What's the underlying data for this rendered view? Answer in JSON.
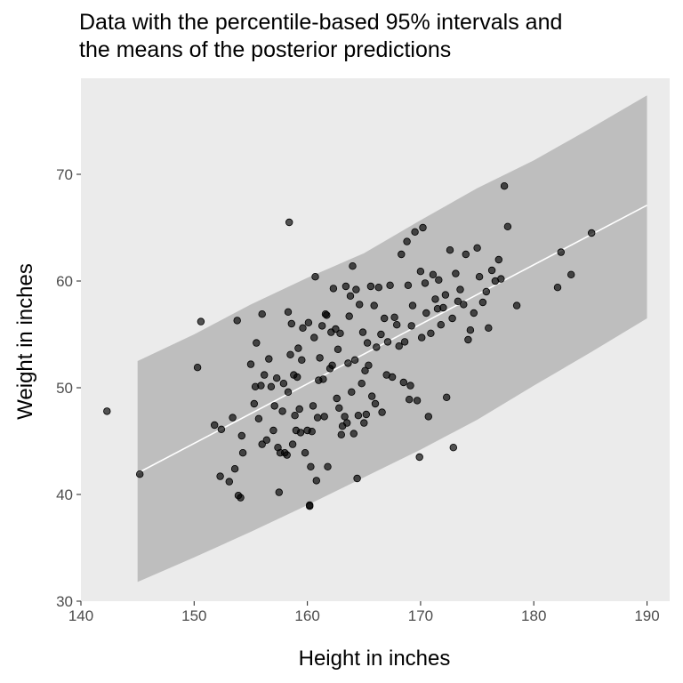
{
  "chart_data": {
    "type": "scatter",
    "title_lines": [
      "Data with the percentile-based 95% intervals and",
      "the means of the posterior predictions"
    ],
    "xlabel": "Height in inches",
    "ylabel": "Weight in inches",
    "xlim": [
      140,
      192
    ],
    "ylim": [
      30,
      79
    ],
    "x_ticks": [
      140,
      150,
      160,
      170,
      180,
      190
    ],
    "y_ticks": [
      30,
      40,
      50,
      60,
      70
    ],
    "grid": false,
    "colors": {
      "panel": "#ebebeb",
      "ribbon": "#bebebe",
      "mean_line": "#ffffff",
      "points": "#000000",
      "tick_text": "#4d4d4d"
    },
    "interval": {
      "x": [
        145,
        150,
        155,
        160,
        165,
        170,
        175,
        180,
        185,
        190
      ],
      "lower": [
        31.8,
        34.1,
        36.5,
        39.0,
        41.6,
        44.2,
        47.0,
        50.2,
        53.3,
        56.5
      ],
      "upper": [
        52.5,
        55.0,
        57.8,
        60.3,
        62.6,
        65.7,
        68.7,
        71.3,
        74.3,
        77.4
      ]
    },
    "mean_line": {
      "x": [
        145,
        190
      ],
      "y": [
        42.0,
        67.1
      ]
    },
    "points": [
      [
        142.3,
        47.8
      ],
      [
        145.2,
        41.9
      ],
      [
        150.3,
        51.9
      ],
      [
        150.6,
        56.2
      ],
      [
        151.8,
        46.5
      ],
      [
        152.3,
        41.7
      ],
      [
        152.4,
        46.1
      ],
      [
        153.1,
        41.2
      ],
      [
        153.4,
        47.2
      ],
      [
        153.6,
        42.4
      ],
      [
        153.8,
        56.3
      ],
      [
        153.9,
        39.9
      ],
      [
        154.1,
        39.7
      ],
      [
        154.2,
        45.5
      ],
      [
        154.3,
        43.9
      ],
      [
        155.0,
        52.2
      ],
      [
        155.3,
        48.5
      ],
      [
        155.4,
        50.1
      ],
      [
        155.5,
        54.2
      ],
      [
        155.7,
        47.1
      ],
      [
        155.9,
        50.2
      ],
      [
        156.0,
        56.9
      ],
      [
        156.0,
        44.7
      ],
      [
        156.2,
        51.2
      ],
      [
        156.4,
        45.1
      ],
      [
        156.6,
        52.7
      ],
      [
        156.8,
        50.1
      ],
      [
        157.0,
        46.0
      ],
      [
        157.1,
        48.3
      ],
      [
        157.3,
        50.9
      ],
      [
        157.4,
        44.4
      ],
      [
        157.5,
        40.2
      ],
      [
        157.6,
        43.9
      ],
      [
        157.8,
        47.8
      ],
      [
        157.9,
        50.4
      ],
      [
        158.0,
        43.9
      ],
      [
        158.2,
        43.7
      ],
      [
        158.3,
        49.6
      ],
      [
        158.3,
        57.1
      ],
      [
        158.4,
        65.5
      ],
      [
        158.5,
        53.1
      ],
      [
        158.6,
        56.0
      ],
      [
        158.7,
        44.7
      ],
      [
        158.8,
        51.2
      ],
      [
        158.9,
        47.4
      ],
      [
        159.0,
        46.0
      ],
      [
        159.1,
        51.0
      ],
      [
        159.2,
        53.7
      ],
      [
        159.3,
        48.0
      ],
      [
        159.4,
        45.8
      ],
      [
        159.5,
        52.6
      ],
      [
        159.6,
        55.6
      ],
      [
        159.8,
        43.9
      ],
      [
        160.0,
        46.0
      ],
      [
        160.1,
        56.1
      ],
      [
        160.2,
        39.0
      ],
      [
        160.2,
        38.9
      ],
      [
        160.3,
        42.6
      ],
      [
        160.4,
        45.9
      ],
      [
        160.5,
        48.3
      ],
      [
        160.6,
        54.7
      ],
      [
        160.7,
        60.4
      ],
      [
        160.8,
        41.3
      ],
      [
        160.9,
        47.2
      ],
      [
        161.0,
        50.7
      ],
      [
        161.1,
        52.8
      ],
      [
        161.3,
        55.8
      ],
      [
        161.4,
        50.8
      ],
      [
        161.5,
        47.3
      ],
      [
        161.6,
        56.9
      ],
      [
        161.7,
        56.8
      ],
      [
        161.8,
        42.6
      ],
      [
        162.0,
        51.8
      ],
      [
        162.1,
        55.2
      ],
      [
        162.2,
        52.1
      ],
      [
        162.3,
        59.3
      ],
      [
        162.5,
        55.5
      ],
      [
        162.6,
        49.0
      ],
      [
        162.7,
        53.6
      ],
      [
        162.8,
        48.1
      ],
      [
        162.9,
        55.1
      ],
      [
        163.0,
        45.6
      ],
      [
        163.1,
        46.4
      ],
      [
        163.3,
        47.3
      ],
      [
        163.4,
        59.5
      ],
      [
        163.5,
        46.7
      ],
      [
        163.6,
        52.3
      ],
      [
        163.7,
        56.7
      ],
      [
        163.8,
        58.6
      ],
      [
        163.9,
        49.6
      ],
      [
        164.0,
        61.4
      ],
      [
        164.1,
        45.7
      ],
      [
        164.2,
        52.6
      ],
      [
        164.3,
        59.2
      ],
      [
        164.4,
        41.5
      ],
      [
        164.5,
        47.4
      ],
      [
        164.6,
        57.8
      ],
      [
        164.8,
        50.4
      ],
      [
        164.9,
        55.2
      ],
      [
        165.0,
        46.7
      ],
      [
        165.1,
        51.6
      ],
      [
        165.2,
        47.5
      ],
      [
        165.3,
        54.2
      ],
      [
        165.4,
        52.1
      ],
      [
        165.6,
        59.5
      ],
      [
        165.7,
        49.2
      ],
      [
        165.9,
        57.7
      ],
      [
        166.0,
        48.5
      ],
      [
        166.1,
        53.8
      ],
      [
        166.3,
        59.4
      ],
      [
        166.5,
        55.0
      ],
      [
        166.6,
        47.7
      ],
      [
        166.8,
        56.5
      ],
      [
        167.0,
        51.2
      ],
      [
        167.1,
        54.3
      ],
      [
        167.3,
        59.6
      ],
      [
        167.5,
        51.0
      ],
      [
        167.7,
        56.6
      ],
      [
        167.9,
        55.9
      ],
      [
        168.1,
        53.9
      ],
      [
        168.3,
        62.5
      ],
      [
        168.5,
        50.5
      ],
      [
        168.6,
        54.3
      ],
      [
        168.8,
        63.7
      ],
      [
        168.9,
        59.6
      ],
      [
        169.0,
        48.9
      ],
      [
        169.1,
        50.2
      ],
      [
        169.2,
        55.8
      ],
      [
        169.3,
        57.7
      ],
      [
        169.5,
        64.6
      ],
      [
        169.7,
        48.8
      ],
      [
        169.9,
        43.5
      ],
      [
        170.0,
        60.9
      ],
      [
        170.1,
        54.7
      ],
      [
        170.2,
        65.0
      ],
      [
        170.4,
        59.8
      ],
      [
        170.5,
        57.0
      ],
      [
        170.7,
        47.3
      ],
      [
        170.9,
        55.1
      ],
      [
        171.1,
        60.6
      ],
      [
        171.3,
        58.3
      ],
      [
        171.5,
        57.4
      ],
      [
        171.6,
        60.1
      ],
      [
        171.8,
        55.9
      ],
      [
        172.0,
        57.5
      ],
      [
        172.2,
        58.7
      ],
      [
        172.3,
        49.1
      ],
      [
        172.6,
        62.9
      ],
      [
        172.8,
        56.5
      ],
      [
        172.9,
        44.4
      ],
      [
        173.1,
        60.7
      ],
      [
        173.3,
        58.1
      ],
      [
        173.5,
        59.2
      ],
      [
        173.8,
        57.8
      ],
      [
        174.0,
        62.5
      ],
      [
        174.2,
        54.5
      ],
      [
        174.4,
        55.4
      ],
      [
        174.7,
        57.0
      ],
      [
        175.0,
        63.1
      ],
      [
        175.2,
        60.4
      ],
      [
        175.5,
        58.0
      ],
      [
        175.8,
        59.0
      ],
      [
        176.0,
        55.6
      ],
      [
        176.3,
        61.0
      ],
      [
        176.6,
        60.0
      ],
      [
        176.9,
        62.0
      ],
      [
        177.1,
        60.2
      ],
      [
        177.4,
        68.9
      ],
      [
        177.7,
        65.1
      ],
      [
        178.5,
        57.7
      ],
      [
        182.1,
        59.4
      ],
      [
        182.4,
        62.7
      ],
      [
        183.3,
        60.6
      ],
      [
        185.1,
        64.5
      ]
    ]
  }
}
